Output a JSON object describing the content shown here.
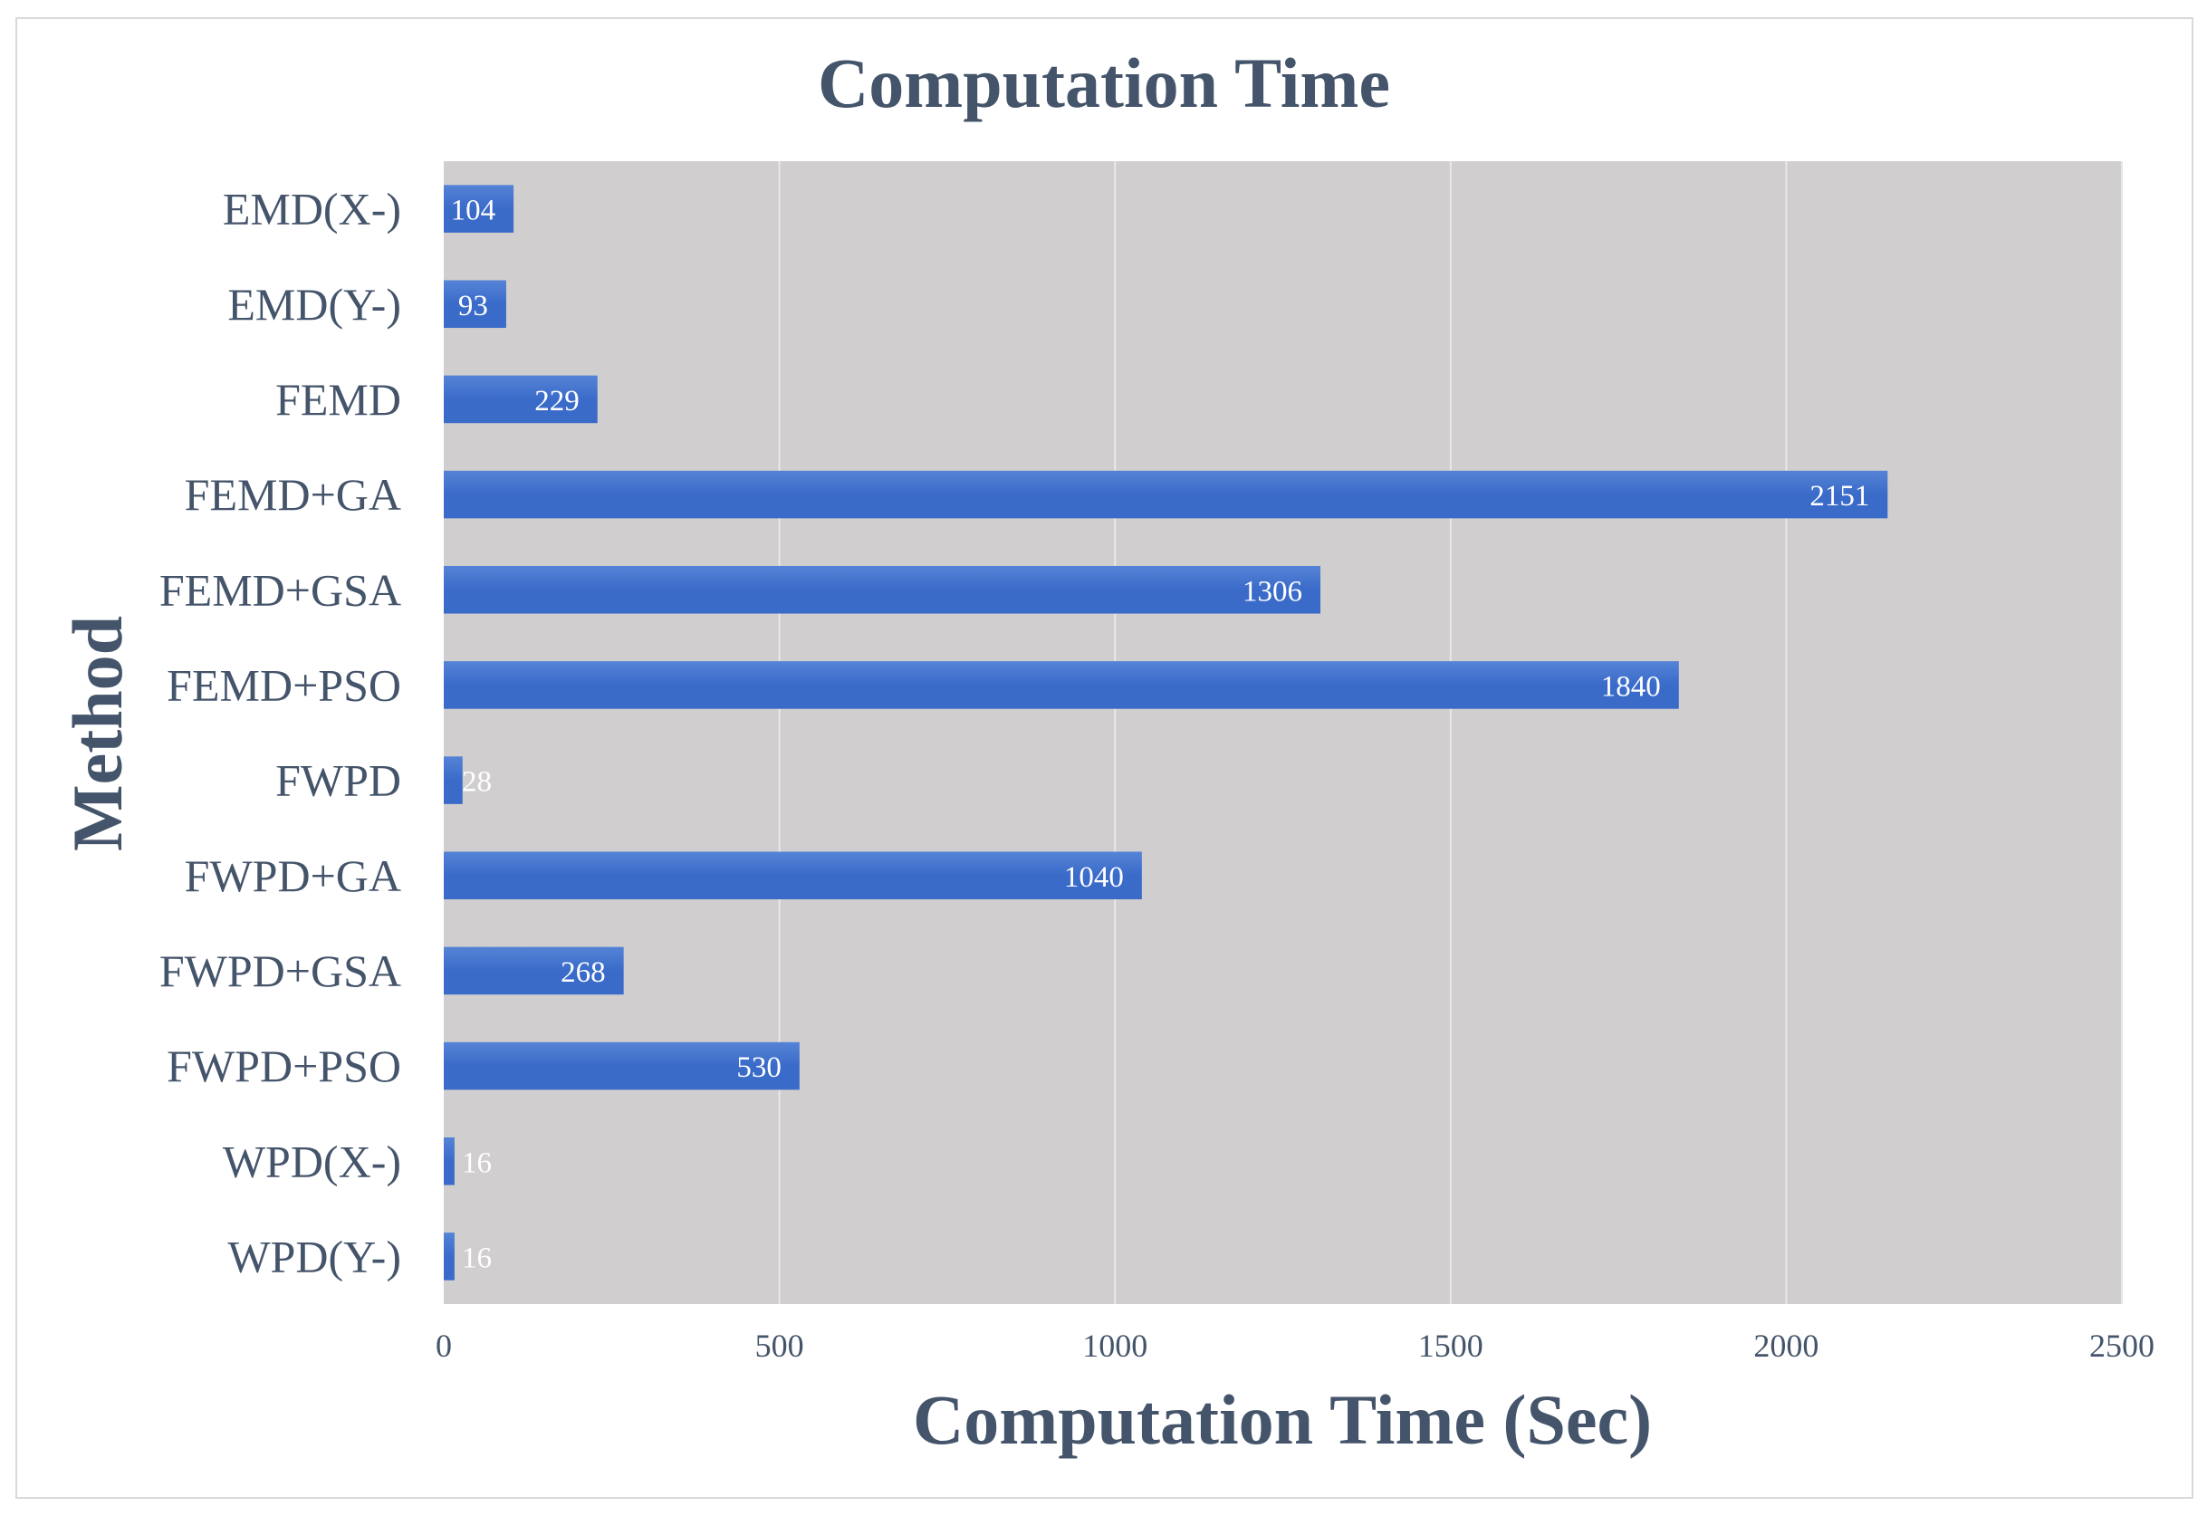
{
  "chart_data": {
    "type": "bar",
    "orientation": "horizontal",
    "title": "Computation Time",
    "xlabel": "Computation Time (Sec)",
    "ylabel": "Method",
    "categories": [
      "EMD(X-)",
      "EMD(Y-)",
      "FEMD",
      "FEMD+GA",
      "FEMD+GSA",
      "FEMD+PSO",
      "FWPD",
      "FWPD+GA",
      "FWPD+GSA",
      "FWPD+PSO",
      "WPD(X-)",
      "WPD(Y-)"
    ],
    "values": [
      104,
      93,
      229,
      2151,
      1306,
      1840,
      28,
      1040,
      268,
      530,
      16,
      16
    ],
    "xlim": [
      0,
      2500
    ],
    "xticks": [
      0,
      500,
      1000,
      1500,
      2000,
      2500
    ],
    "grid": true,
    "legend": "none",
    "colors": {
      "bar": "#3a6bc9",
      "bar_light": "#5583d6",
      "plot_background": "#d0cece",
      "gridline": "#e8e8e8",
      "text": "#44546a",
      "bar_label": "#ffffff"
    }
  }
}
